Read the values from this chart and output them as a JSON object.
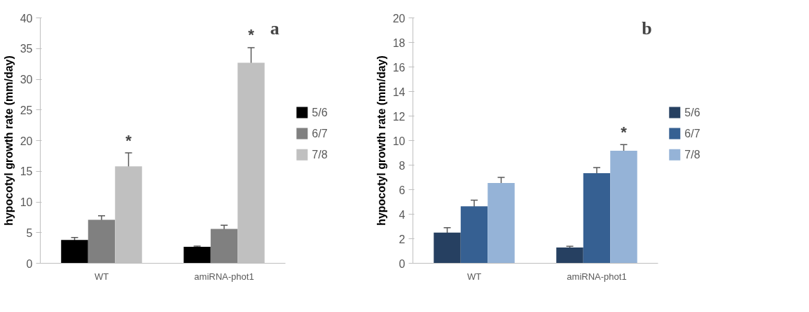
{
  "chart_data": [
    {
      "type": "bar",
      "ylabel": "hypocotyl growth rate (mm/day)",
      "categories": [
        "WT",
        "amiRNA-phot1"
      ],
      "ylim": [
        0,
        40
      ],
      "yticks": [
        0,
        5,
        10,
        15,
        20,
        25,
        30,
        35,
        40
      ],
      "grid": false,
      "legend": "right",
      "series": [
        {
          "name": "5/6",
          "color": "#000000",
          "values": [
            3.8,
            2.7
          ],
          "errors": [
            0.4,
            0.1
          ]
        },
        {
          "name": "6/7",
          "color": "#808080",
          "values": [
            7.1,
            5.6
          ],
          "errors": [
            0.65,
            0.6
          ]
        },
        {
          "name": "7/8",
          "color": "#c0c0c0",
          "values": [
            15.8,
            32.7
          ],
          "errors": [
            2.2,
            2.45
          ]
        }
      ],
      "annotations": [
        "a",
        "*",
        "*"
      ]
    },
    {
      "type": "bar",
      "ylabel": "hypocotyl growth rate (mm/day)",
      "categories": [
        "WT",
        "amiRNA-phot1"
      ],
      "ylim": [
        0,
        20
      ],
      "yticks": [
        0,
        2,
        4,
        6,
        8,
        10,
        12,
        14,
        16,
        18,
        20
      ],
      "grid": false,
      "legend": "right",
      "series": [
        {
          "name": "5/6",
          "color": "#264061",
          "values": [
            2.5,
            1.28
          ],
          "errors": [
            0.4,
            0.1
          ]
        },
        {
          "name": "6/7",
          "color": "#366092",
          "values": [
            4.65,
            7.35
          ],
          "errors": [
            0.5,
            0.45
          ]
        },
        {
          "name": "7/8",
          "color": "#95b3d7",
          "values": [
            6.55,
            9.17
          ],
          "errors": [
            0.45,
            0.5
          ]
        }
      ],
      "annotations": [
        "b",
        "*"
      ]
    }
  ]
}
